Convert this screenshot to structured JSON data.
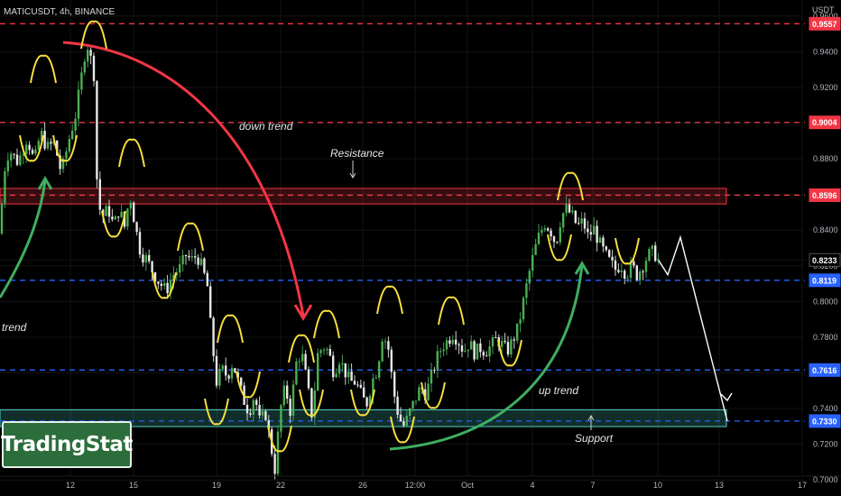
{
  "header": {
    "title": "MATICUSDT, 4h, BINANCE",
    "unit": "USDT"
  },
  "logo": {
    "text": "TradingStat"
  },
  "chart_data": {
    "type": "candlestick",
    "title": "MATICUSDT, 4h, BINANCE",
    "ylabel": "USDT",
    "ylim": [
      0.691,
      0.969
    ],
    "y_ticks": [
      "0.7000",
      "0.7200",
      "0.7400",
      "0.7600",
      "0.7800",
      "0.8000",
      "0.8200",
      "0.8400",
      "0.8600",
      "0.8800",
      "0.9000",
      "0.9200",
      "0.9400",
      "0.9600"
    ],
    "x_ticks": [
      "12",
      "15",
      "19",
      "22",
      "26",
      "12:00",
      "Oct",
      "4",
      "7",
      "10",
      "13",
      "17"
    ],
    "price_levels": [
      {
        "value": 0.9557,
        "label": "0.9557",
        "color": "#f23645",
        "style": "dashed"
      },
      {
        "value": 0.9004,
        "label": "0.9004",
        "color": "#f23645",
        "style": "dashed"
      },
      {
        "value": 0.8596,
        "label": "0.8596",
        "color": "#f23645",
        "style": "dashed"
      },
      {
        "value": 0.8233,
        "label": "0.8233",
        "color": "#2a2a2a",
        "style": "dotted"
      },
      {
        "value": 0.8119,
        "label": "0.8119",
        "color": "#2962ff",
        "style": "dashed"
      },
      {
        "value": 0.7616,
        "label": "0.7616",
        "color": "#2962ff",
        "style": "dashed"
      },
      {
        "value": 0.733,
        "label": "0.7330",
        "color": "#2962ff",
        "style": "dashed"
      }
    ],
    "zones": [
      {
        "label": "Resistance",
        "from": 0.8547,
        "to": 0.8634,
        "color": "#f23645"
      },
      {
        "label": "Support",
        "from": 0.7299,
        "to": 0.7393,
        "color": "#4dd0c4"
      }
    ],
    "annotations": [
      "down trend",
      "up trend",
      "trend",
      "Resistance",
      "Support"
    ],
    "price_path": [
      [
        0,
        0.838
      ],
      [
        4,
        0.872
      ],
      [
        10,
        0.885
      ],
      [
        20,
        0.878
      ],
      [
        30,
        0.892
      ],
      [
        38,
        0.878
      ],
      [
        45,
        0.895
      ],
      [
        52,
        0.886
      ],
      [
        60,
        0.889
      ],
      [
        68,
        0.872
      ],
      [
        76,
        0.89
      ],
      [
        84,
        0.905
      ],
      [
        90,
        0.925
      ],
      [
        96,
        0.946
      ],
      [
        101,
        0.935
      ],
      [
        105,
        0.925
      ],
      [
        108,
        0.855
      ],
      [
        114,
        0.848
      ],
      [
        120,
        0.852
      ],
      [
        126,
        0.842
      ],
      [
        132,
        0.852
      ],
      [
        138,
        0.842
      ],
      [
        144,
        0.86
      ],
      [
        150,
        0.842
      ],
      [
        156,
        0.827
      ],
      [
        162,
        0.824
      ],
      [
        168,
        0.818
      ],
      [
        176,
        0.811
      ],
      [
        184,
        0.806
      ],
      [
        192,
        0.815
      ],
      [
        200,
        0.819
      ],
      [
        206,
        0.826
      ],
      [
        212,
        0.823
      ],
      [
        218,
        0.826
      ],
      [
        224,
        0.819
      ],
      [
        230,
        0.808
      ],
      [
        234,
        0.782
      ],
      [
        240,
        0.755
      ],
      [
        246,
        0.762
      ],
      [
        252,
        0.758
      ],
      [
        258,
        0.766
      ],
      [
        264,
        0.755
      ],
      [
        270,
        0.745
      ],
      [
        276,
        0.738
      ],
      [
        282,
        0.748
      ],
      [
        288,
        0.732
      ],
      [
        294,
        0.738
      ],
      [
        300,
        0.72
      ],
      [
        305,
        0.705
      ],
      [
        310,
        0.738
      ],
      [
        316,
        0.752
      ],
      [
        322,
        0.738
      ],
      [
        328,
        0.765
      ],
      [
        334,
        0.772
      ],
      [
        340,
        0.755
      ],
      [
        346,
        0.735
      ],
      [
        352,
        0.77
      ],
      [
        358,
        0.775
      ],
      [
        364,
        0.772
      ],
      [
        370,
        0.76
      ],
      [
        376,
        0.768
      ],
      [
        382,
        0.761
      ],
      [
        388,
        0.755
      ],
      [
        394,
        0.755
      ],
      [
        400,
        0.748
      ],
      [
        406,
        0.742
      ],
      [
        412,
        0.755
      ],
      [
        418,
        0.762
      ],
      [
        424,
        0.782
      ],
      [
        430,
        0.775
      ],
      [
        436,
        0.75
      ],
      [
        442,
        0.735
      ],
      [
        448,
        0.73
      ],
      [
        454,
        0.738
      ],
      [
        460,
        0.745
      ],
      [
        466,
        0.752
      ],
      [
        472,
        0.748
      ],
      [
        478,
        0.758
      ],
      [
        484,
        0.768
      ],
      [
        490,
        0.775
      ],
      [
        496,
        0.778
      ],
      [
        502,
        0.782
      ],
      [
        508,
        0.778
      ],
      [
        514,
        0.772
      ],
      [
        520,
        0.777
      ],
      [
        526,
        0.771
      ],
      [
        532,
        0.774
      ],
      [
        538,
        0.772
      ],
      [
        544,
        0.775
      ],
      [
        550,
        0.779
      ],
      [
        556,
        0.776
      ],
      [
        562,
        0.772
      ],
      [
        568,
        0.778
      ],
      [
        574,
        0.785
      ],
      [
        580,
        0.8
      ],
      [
        586,
        0.815
      ],
      [
        592,
        0.828
      ],
      [
        598,
        0.838
      ],
      [
        604,
        0.844
      ],
      [
        610,
        0.84
      ],
      [
        616,
        0.832
      ],
      [
        622,
        0.848
      ],
      [
        628,
        0.852
      ],
      [
        634,
        0.848
      ],
      [
        640,
        0.842
      ],
      [
        646,
        0.845
      ],
      [
        652,
        0.836
      ],
      [
        658,
        0.841
      ],
      [
        664,
        0.833
      ],
      [
        670,
        0.827
      ],
      [
        676,
        0.822
      ],
      [
        682,
        0.818
      ],
      [
        688,
        0.821
      ],
      [
        694,
        0.815
      ],
      [
        700,
        0.82
      ],
      [
        706,
        0.815
      ],
      [
        712,
        0.82
      ],
      [
        718,
        0.826
      ],
      [
        724,
        0.828
      ],
      [
        730,
        0.823
      ]
    ],
    "projection": [
      [
        730,
        0.823
      ],
      [
        740,
        0.815
      ],
      [
        754,
        0.836
      ],
      [
        806,
        0.733
      ]
    ]
  }
}
